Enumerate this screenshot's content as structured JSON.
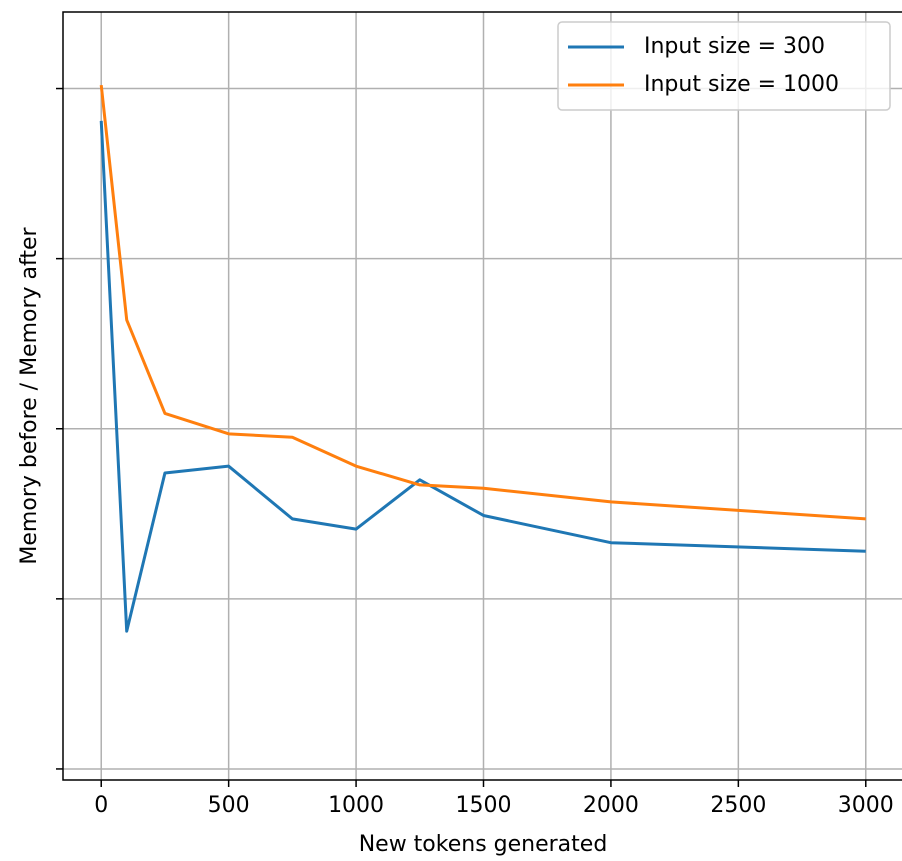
{
  "chart_data": {
    "type": "line",
    "xlabel": "New tokens generated",
    "ylabel": "Memory before / Memory after",
    "x": [
      0,
      100,
      250,
      500,
      750,
      1000,
      1250,
      1500,
      2000,
      3000
    ],
    "series": [
      {
        "name": "Input size = 300",
        "color": "#1f77b4",
        "values": [
          3.81,
          0.81,
          1.74,
          1.78,
          1.47,
          1.41,
          1.7,
          1.49,
          1.33,
          1.28
        ]
      },
      {
        "name": "Input size = 1000",
        "color": "#ff7f0e",
        "values": [
          4.02,
          2.64,
          2.09,
          1.97,
          1.95,
          1.78,
          1.67,
          1.65,
          1.57,
          1.47
        ]
      }
    ],
    "xlim": [
      -150,
      3150
    ],
    "xticks": [
      0,
      500,
      1000,
      1500,
      2000,
      2500,
      3000
    ],
    "ylim": [
      -0.065,
      4.45
    ],
    "yticks": [
      0,
      1,
      2,
      3,
      4
    ],
    "grid": true,
    "legend": "upper right"
  }
}
